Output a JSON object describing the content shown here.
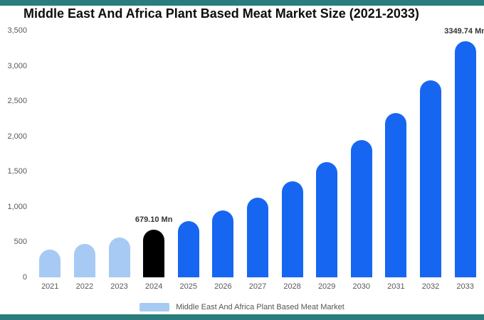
{
  "frame": {
    "color": "#2B7C7C"
  },
  "title": "Middle East And Africa Plant Based Meat Market Size (2021-2033)",
  "legend": {
    "label": "Middle East And Africa Plant Based Meat Market",
    "swatch_color": "#A6CAF4"
  },
  "chart_data": {
    "type": "bar",
    "title": "Middle East And Africa Plant Based Meat Market Size (2021-2033)",
    "categories": [
      "2021",
      "2022",
      "2023",
      "2024",
      "2025",
      "2026",
      "2027",
      "2028",
      "2029",
      "2030",
      "2031",
      "2032",
      "2033"
    ],
    "values": [
      390,
      470,
      560,
      679.1,
      800,
      950,
      1130,
      1360,
      1630,
      1950,
      2330,
      2790,
      3349.74
    ],
    "point_labels": [
      "",
      "",
      "",
      "679.10 Mn",
      "",
      "",
      "",
      "",
      "",
      "",
      "",
      "",
      "3349.74 Mn"
    ],
    "bar_colors": [
      "#A6CAF4",
      "#A6CAF4",
      "#A6CAF4",
      "#000000",
      "#1666F2",
      "#1666F2",
      "#1666F2",
      "#1666F2",
      "#1666F2",
      "#1666F2",
      "#1666F2",
      "#1666F2",
      "#1666F2"
    ],
    "ylim": [
      0,
      3500
    ],
    "yticks": [
      {
        "v": 0,
        "label": "0"
      },
      {
        "v": 500,
        "label": "500"
      },
      {
        "v": 1000,
        "label": "1,000"
      },
      {
        "v": 1500,
        "label": "1,500"
      },
      {
        "v": 2000,
        "label": "2,000"
      },
      {
        "v": 2500,
        "label": "2,500"
      },
      {
        "v": 3000,
        "label": "3,000"
      },
      {
        "v": 3500,
        "label": "3,500"
      }
    ],
    "legend": "Middle East And Africa Plant Based Meat Market",
    "grid": false,
    "legend_position": "bottom"
  }
}
